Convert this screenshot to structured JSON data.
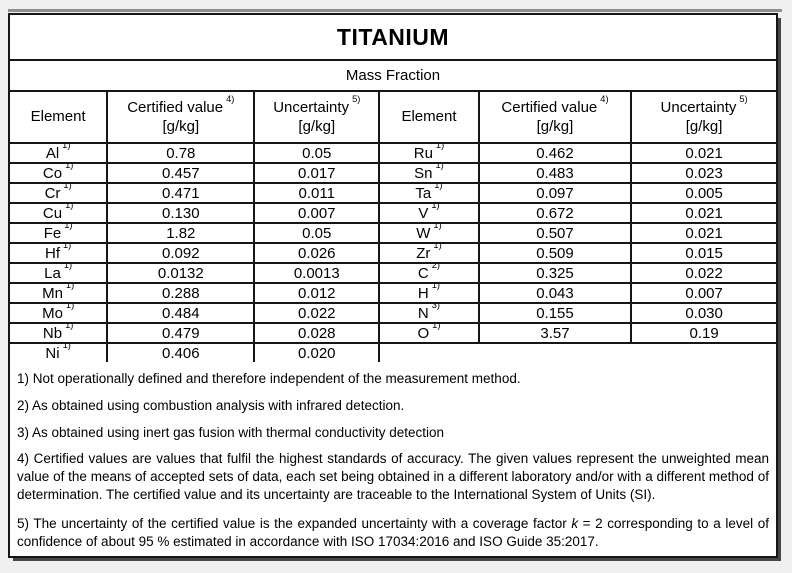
{
  "title": "TITANIUM",
  "subtitle": "Mass Fraction",
  "colors": {
    "page-bg": "#f0f0f0",
    "table-bg": "#ffffff",
    "border": "#161616",
    "text": "#000000",
    "shadow": "#474747"
  },
  "table": {
    "headers": {
      "element": "Element",
      "certified": "Certified value",
      "certified_sup": "4)",
      "uncertainty": "Uncertainty",
      "uncertainty_sup": "5)",
      "unit": "[g/kg]"
    },
    "left_rows": [
      {
        "el": "Al",
        "sup": "1)",
        "value": "0.78",
        "unc": "0.05"
      },
      {
        "el": "Co",
        "sup": "1)",
        "value": "0.457",
        "unc": "0.017"
      },
      {
        "el": "Cr",
        "sup": "1)",
        "value": "0.471",
        "unc": "0.011"
      },
      {
        "el": "Cu",
        "sup": "1)",
        "value": "0.130",
        "unc": "0.007"
      },
      {
        "el": "Fe",
        "sup": "1)",
        "value": "1.82",
        "unc": "0.05"
      },
      {
        "el": "Hf",
        "sup": "1)",
        "value": "0.092",
        "unc": "0.026"
      },
      {
        "el": "La",
        "sup": "1)",
        "value": "0.0132",
        "unc": "0.0013"
      },
      {
        "el": "Mn",
        "sup": "1)",
        "value": "0.288",
        "unc": "0.012"
      },
      {
        "el": "Mo",
        "sup": "1)",
        "value": "0.484",
        "unc": "0.022"
      },
      {
        "el": "Nb",
        "sup": "1)",
        "value": "0.479",
        "unc": "0.028"
      },
      {
        "el": "Ni",
        "sup": "1)",
        "value": "0.406",
        "unc": "0.020"
      }
    ],
    "right_rows": [
      {
        "el": "Ru",
        "sup": "1)",
        "value": "0.462",
        "unc": "0.021"
      },
      {
        "el": "Sn",
        "sup": "1)",
        "value": "0.483",
        "unc": "0.023"
      },
      {
        "el": "Ta",
        "sup": "1)",
        "value": "0.097",
        "unc": "0.005"
      },
      {
        "el": "V",
        "sup": "1)",
        "value": "0.672",
        "unc": "0.021"
      },
      {
        "el": "W",
        "sup": "1)",
        "value": "0.507",
        "unc": "0.021"
      },
      {
        "el": "Zr",
        "sup": "1)",
        "value": "0.509",
        "unc": "0.015"
      },
      {
        "el": "C",
        "sup": "2)",
        "value": "0.325",
        "unc": "0.022"
      },
      {
        "el": "H",
        "sup": "1)",
        "value": "0.043",
        "unc": "0.007"
      },
      {
        "el": "N",
        "sup": "3)",
        "value": "0.155",
        "unc": "0.030"
      },
      {
        "el": "O",
        "sup": "1)",
        "value": "3.57",
        "unc": "0.19"
      }
    ]
  },
  "footnotes": {
    "n1": "1) Not operationally defined and therefore independent of the measurement method.",
    "n2": "2) As obtained using combustion analysis with infrared detection.",
    "n3": "3) As obtained using inert gas fusion with thermal conductivity detection",
    "n4": "4) Certified values are values that fulfil the highest standards of accuracy. The given values represent the unweighted mean value of the means of accepted sets of data, each set being obtained in a different laboratory and/or with a different method of determination. The certified value and its uncertainty are traceable to the International System of Units (SI).",
    "n5_pre": "5) The uncertainty of the certified value is the expanded uncertainty with a coverage factor ",
    "n5_k": "k",
    "n5_post": " = 2 corresponding to a level of confidence of about 95 % estimated in accordance with ISO 17034:2016 and ISO Guide 35:2017."
  }
}
